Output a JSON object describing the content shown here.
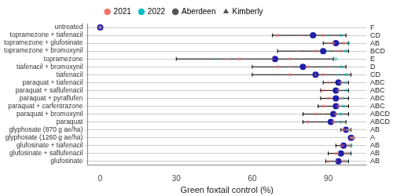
{
  "chart_data": {
    "type": "scatter",
    "x_label": "Green foxtail control (%)",
    "categories": [
      "untreated",
      "topramezone + tiafenacil",
      "topramezone + glufosinate",
      "topramezone + bromoxynil",
      "topramezone",
      "tiafenacil + bromoxynil",
      "tiafenacil",
      "paraquat + tiafenacil",
      "paraquat + saflufenacil",
      "paraquat + pyraflufen",
      "paraquat + carfentrazone",
      "paraquat + bromoxynil",
      "paraquat",
      "glyphosate (870 g ae/ha)",
      "glyphosate (1260 g ae/ha)",
      "glufosinate + tiafenacil",
      "glufosinate + saflufenacil",
      "glufosinate"
    ],
    "xlim": [
      -5,
      105
    ],
    "xticks": [
      0,
      30,
      60,
      90
    ],
    "grid": true,
    "legend": "top",
    "years": [
      {
        "name": "2021",
        "color": "#F8766D"
      },
      {
        "name": "2022",
        "color": "#00BFC4"
      }
    ],
    "locations": [
      {
        "name": "Aberdeen",
        "marker": "circle"
      },
      {
        "name": "Kimberly",
        "marker": "triangle"
      }
    ],
    "observations": [
      {
        "year": "2021",
        "location": "Aberdeen",
        "values": [
          [
            0
          ],
          [
            70,
            88
          ],
          [
            92,
            96
          ],
          [
            85,
            95
          ],
          [
            55,
            75
          ],
          [
            70,
            82
          ],
          [
            75,
            88
          ],
          [
            90,
            95
          ],
          [
            88,
            94
          ],
          [
            90,
            95
          ],
          [
            88,
            94
          ],
          [
            85,
            93
          ],
          [
            82,
            92
          ],
          [
            96,
            98
          ],
          [
            99,
            100
          ],
          [
            95,
            98
          ],
          [
            93,
            97
          ],
          [
            90,
            96
          ]
        ]
      },
      {
        "year": "2021",
        "location": "Kimberly",
        "values": [
          [
            0
          ],
          [
            80,
            92
          ],
          [
            90,
            97
          ],
          [
            78,
            93
          ],
          [
            50,
            68
          ],
          [
            75,
            90
          ],
          [
            70,
            85
          ],
          [
            92,
            97
          ],
          [
            90,
            96
          ],
          [
            91,
            96
          ],
          [
            89,
            95
          ],
          [
            88,
            96
          ],
          [
            85,
            95
          ],
          [
            97,
            99
          ],
          [
            99,
            100
          ],
          [
            96,
            99
          ],
          [
            94,
            98
          ],
          [
            93,
            97
          ]
        ]
      },
      {
        "year": "2022",
        "location": "Aberdeen",
        "values": [
          [
            0
          ],
          [
            95
          ],
          [
            98
          ],
          [
            97
          ],
          [
            93
          ],
          [
            95
          ],
          [
            97
          ],
          [
            97
          ],
          [
            97
          ],
          [
            96
          ],
          [
            96
          ],
          [
            95
          ],
          [
            95
          ],
          [
            98
          ],
          [
            100
          ],
          [
            99
          ],
          [
            98
          ],
          [
            97
          ]
        ]
      },
      {
        "year": "2022",
        "location": "Kimberly",
        "values": [
          [
            0
          ],
          [
            90
          ],
          [
            96
          ],
          [
            90
          ],
          [
            45
          ],
          [
            92
          ],
          [
            94
          ],
          [
            96
          ],
          [
            95
          ],
          [
            95
          ],
          [
            95
          ],
          [
            94
          ],
          [
            93
          ],
          [
            98
          ],
          [
            100
          ],
          [
            98
          ],
          [
            97
          ],
          [
            96
          ]
        ]
      }
    ],
    "means": {
      "color": "#1f1fa8",
      "values": [
        0,
        84,
        93,
        88,
        69,
        80,
        85,
        94,
        93,
        93,
        93,
        92,
        91,
        97,
        99,
        96,
        95,
        94
      ],
      "ci_low": [
        0,
        68,
        88,
        70,
        30,
        60,
        60,
        88,
        87,
        87,
        86,
        80,
        80,
        95,
        98,
        93,
        90,
        89
      ],
      "ci_high": [
        0,
        97,
        98,
        98,
        92,
        97,
        99,
        98,
        98,
        98,
        98,
        98,
        97,
        99,
        100,
        99,
        99,
        98
      ]
    },
    "letters": [
      "F",
      "CD",
      "AB",
      "BCD",
      "E",
      "D",
      "CD",
      "ABC",
      "ABC",
      "ABC",
      "ABC",
      "ABCD",
      "ABCD",
      "AB",
      "A",
      "AB",
      "AB",
      "AB"
    ]
  }
}
